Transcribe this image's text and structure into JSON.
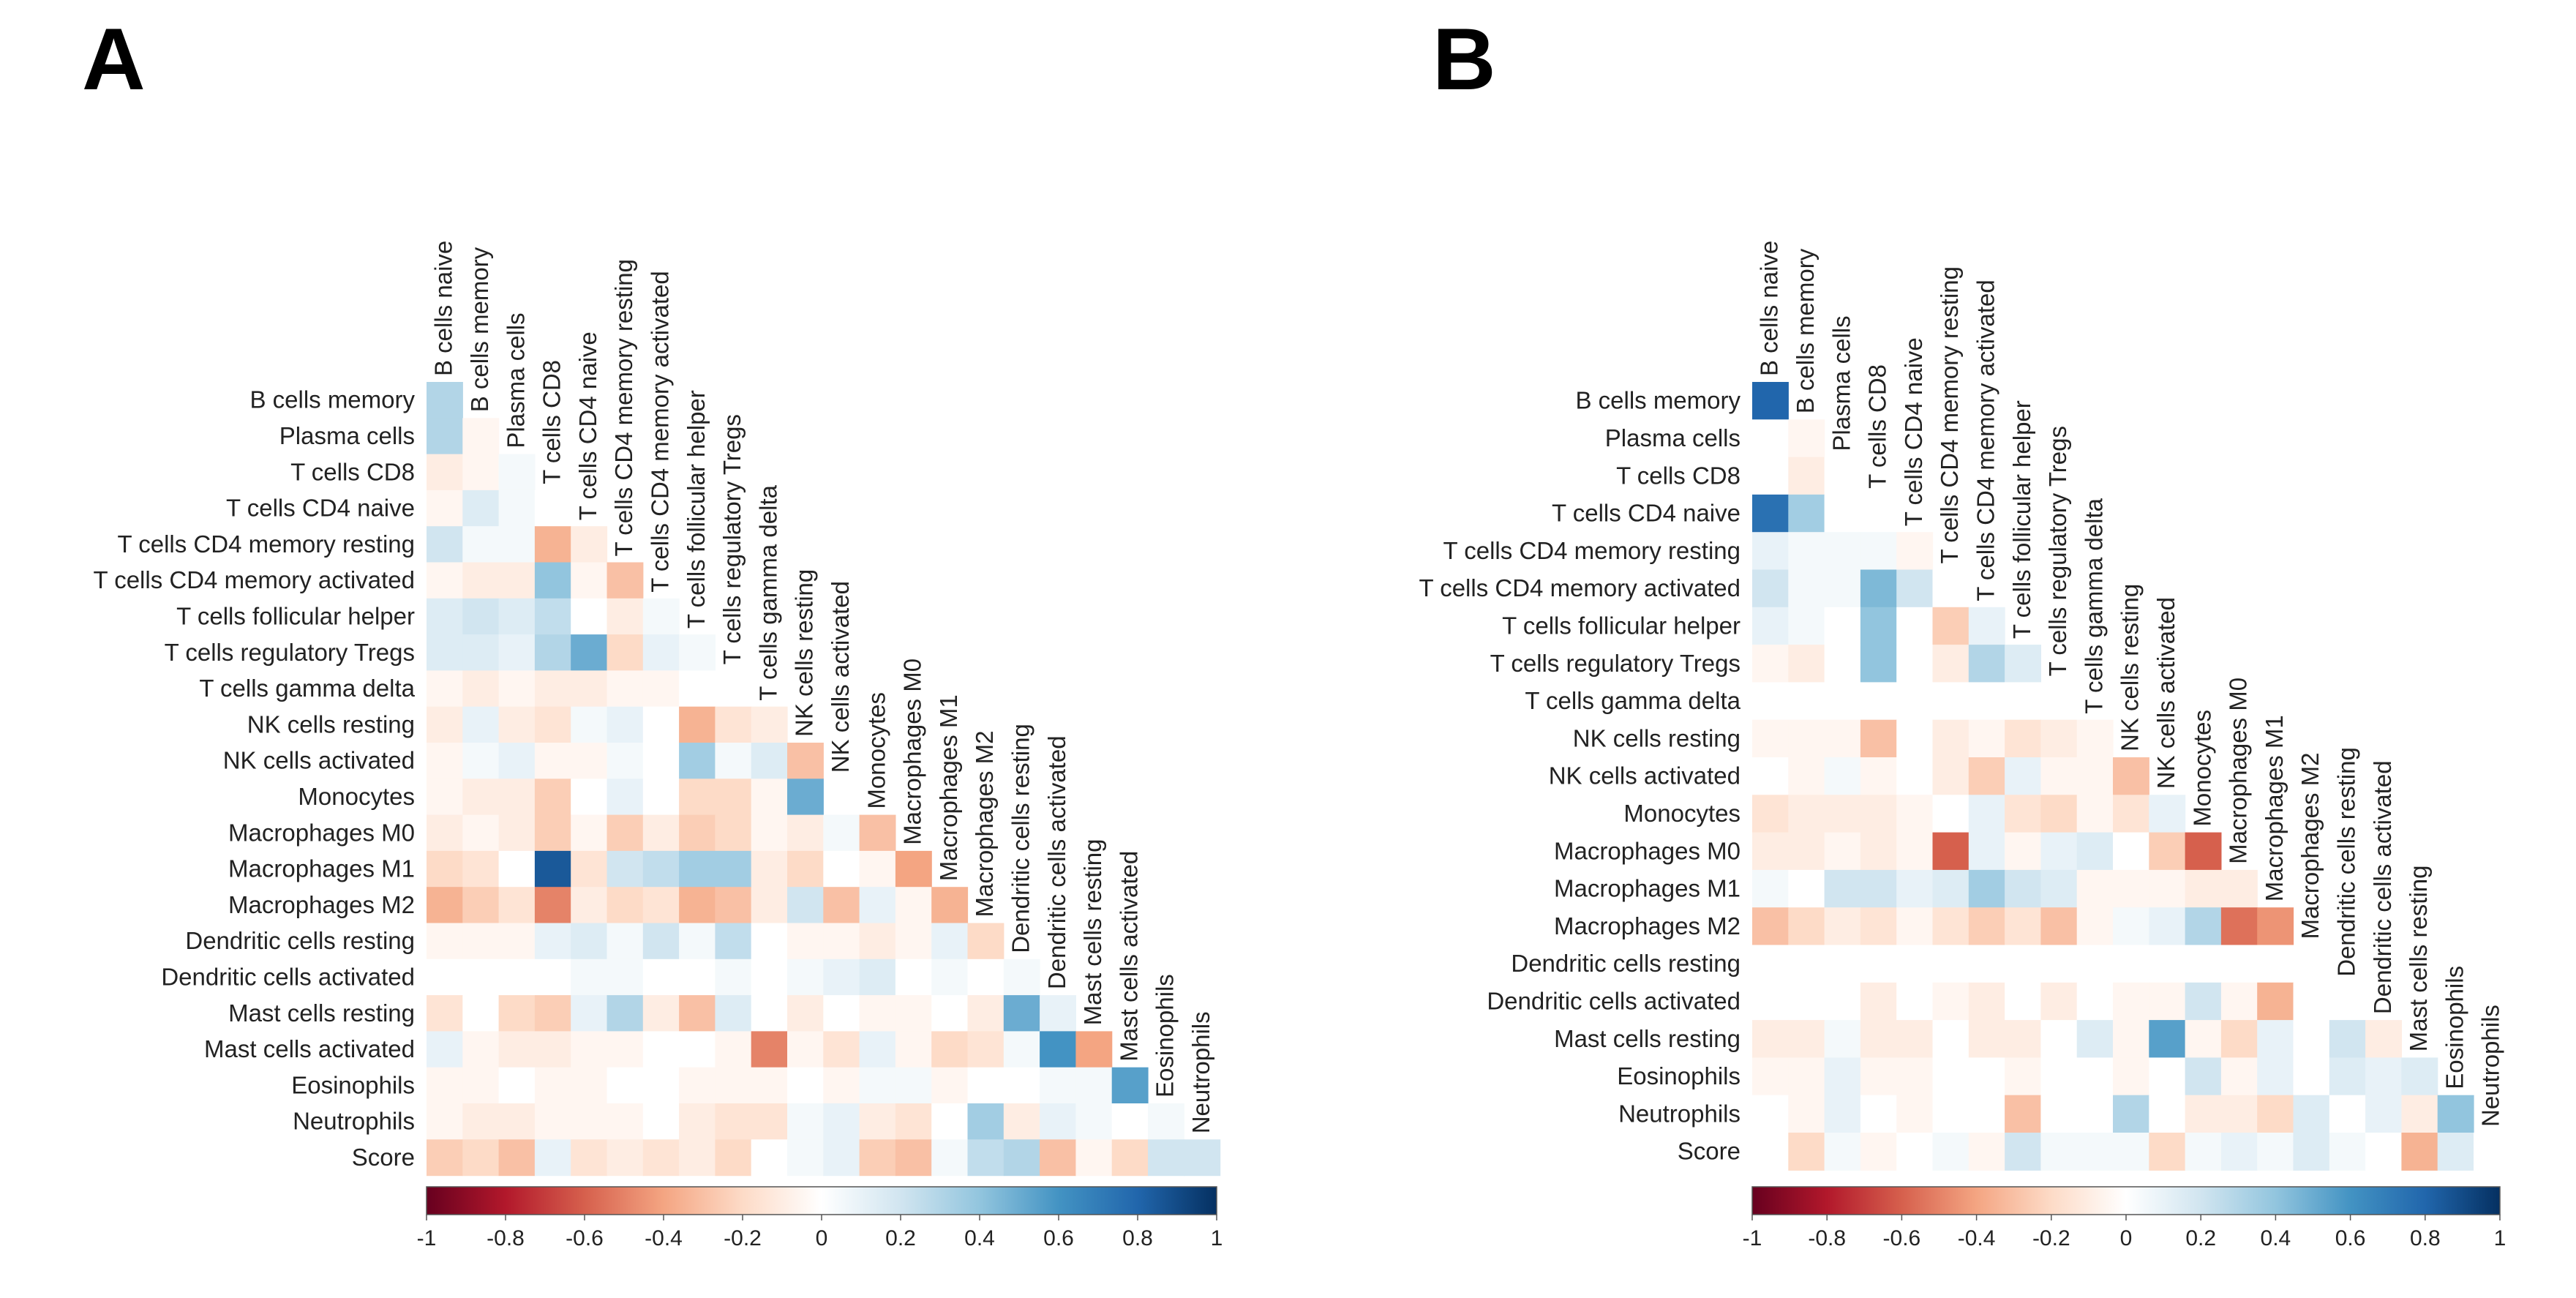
{
  "chart_data": [
    {
      "type": "heatmap",
      "panel": "A",
      "layout": "lower-triangle correlation matrix",
      "row_labels": [
        "B cells memory",
        "Plasma cells",
        "T cells CD8",
        "T cells CD4 naive",
        "T cells CD4 memory resting",
        "T cells CD4 memory activated",
        "T cells follicular helper",
        "T cells regulatory  Tregs",
        "T cells gamma delta",
        "NK cells resting",
        "NK cells activated",
        "Monocytes",
        "Macrophages M0",
        "Macrophages M1",
        "Macrophages M2",
        "Dendritic cells resting",
        "Dendritic cells activated",
        "Mast cells resting",
        "Mast cells activated",
        "Eosinophils",
        "Neutrophils",
        "Score"
      ],
      "col_labels": [
        "B cells naive",
        "B cells memory",
        "Plasma cells",
        "T cells CD8",
        "T cells CD4 naive",
        "T cells CD4 memory resting",
        "T cells CD4 memory activated",
        "T cells follicular helper",
        "T cells regulatory  Tregs",
        "T cells gamma delta",
        "NK cells resting",
        "NK cells activated",
        "Monocytes",
        "Macrophages M0",
        "Macrophages M1",
        "Macrophages M2",
        "Dendritic cells resting",
        "Dendritic cells activated",
        "Mast cells resting",
        "Mast cells activated",
        "Eosinophils",
        "Neutrophils"
      ],
      "values": [
        [
          0.3
        ],
        [
          0.3,
          -0.05
        ],
        [
          -0.1,
          -0.05,
          0.05
        ],
        [
          -0.05,
          0.15,
          0.05,
          0
        ],
        [
          0.2,
          0.05,
          0.05,
          -0.35,
          -0.1
        ],
        [
          -0.05,
          -0.1,
          -0.1,
          0.4,
          -0.05,
          -0.3
        ],
        [
          0.15,
          0.2,
          0.15,
          0.25,
          0,
          -0.1,
          0.05
        ],
        [
          0.15,
          0.15,
          0.1,
          0.3,
          0.5,
          -0.2,
          0.1,
          0.05
        ],
        [
          -0.05,
          -0.1,
          -0.05,
          -0.1,
          -0.1,
          -0.05,
          -0.05,
          0
        ],
        [
          -0.1,
          0.1,
          -0.1,
          -0.15,
          0.05,
          0.1,
          0,
          -0.35,
          -0.15,
          -0.1
        ],
        [
          -0.05,
          0.05,
          0.1,
          -0.05,
          -0.05,
          0.05,
          0,
          0.35,
          0.05,
          0.15,
          -0.3
        ],
        [
          -0.05,
          -0.1,
          -0.1,
          -0.25,
          0,
          0.1,
          0,
          -0.2,
          -0.2,
          -0.05,
          0.5
        ],
        [
          -0.1,
          -0.05,
          -0.1,
          -0.25,
          -0.05,
          -0.25,
          -0.1,
          -0.25,
          -0.2,
          -0.05,
          -0.1,
          0.05,
          -0.3
        ],
        [
          -0.2,
          -0.15,
          0,
          0.85,
          -0.15,
          0.2,
          0.25,
          0.35,
          0.35,
          -0.1,
          -0.2,
          0,
          -0.05,
          -0.4
        ],
        [
          -0.35,
          -0.25,
          -0.15,
          -0.5,
          -0.1,
          -0.2,
          -0.15,
          -0.35,
          -0.3,
          -0.1,
          0.2,
          -0.3,
          0.1,
          -0.05,
          -0.35
        ],
        [
          -0.05,
          -0.05,
          -0.05,
          0.1,
          0.15,
          0.05,
          0.2,
          0.05,
          0.25,
          0,
          -0.05,
          -0.05,
          -0.1,
          -0.05,
          0.1,
          -0.2
        ],
        [
          0,
          0,
          0,
          0,
          0.05,
          0.05,
          0,
          0,
          0.05,
          0,
          0.05,
          0.1,
          0.15,
          0,
          0.05,
          0,
          0.05
        ],
        [
          -0.15,
          0,
          -0.2,
          -0.25,
          0.1,
          0.3,
          -0.1,
          -0.3,
          0.15,
          0,
          -0.1,
          0,
          -0.05,
          -0.05,
          0,
          -0.1,
          0.5,
          0.1
        ],
        [
          0.1,
          -0.05,
          -0.1,
          -0.1,
          -0.05,
          -0.05,
          0,
          0,
          -0.05,
          -0.5,
          -0.05,
          -0.15,
          0.1,
          -0.05,
          -0.2,
          -0.15,
          0.05,
          0.6,
          -0.4
        ],
        [
          -0.05,
          -0.05,
          0,
          -0.05,
          -0.05,
          0,
          0,
          -0.05,
          -0.05,
          -0.05,
          0,
          -0.05,
          0.05,
          0.05,
          -0.05,
          0,
          0,
          0.05,
          0.05,
          0.55
        ],
        [
          -0.05,
          -0.1,
          -0.1,
          -0.05,
          -0.05,
          -0.05,
          0,
          -0.1,
          -0.15,
          -0.15,
          0.05,
          0.1,
          -0.1,
          -0.15,
          0,
          0.35,
          -0.1,
          0.1,
          0.05,
          0,
          0.05
        ],
        [
          -0.25,
          -0.2,
          -0.3,
          0.1,
          -0.15,
          -0.1,
          -0.15,
          -0.1,
          -0.2,
          0,
          0.05,
          0.1,
          -0.25,
          -0.3,
          0.05,
          0.25,
          0.3,
          -0.3,
          -0.05,
          -0.2,
          0.2,
          0.2
        ]
      ],
      "colorbar": {
        "ticks": [
          -1,
          -0.8,
          -0.6,
          -0.4,
          -0.2,
          0,
          0.2,
          0.4,
          0.6,
          0.8,
          1
        ],
        "tick_labels": [
          "-1",
          "-0.8",
          "-0.6",
          "-0.4",
          "-0.2",
          "0",
          "0.2",
          "0.4",
          "0.6",
          "0.8",
          "1"
        ]
      }
    },
    {
      "type": "heatmap",
      "panel": "B",
      "layout": "lower-triangle correlation matrix",
      "row_labels": [
        "B cells memory",
        "Plasma cells",
        "T cells CD8",
        "T cells CD4 naive",
        "T cells CD4 memory resting",
        "T cells CD4 memory activated",
        "T cells follicular helper",
        "T cells regulatory  Tregs",
        "T cells gamma delta",
        "NK cells resting",
        "NK cells activated",
        "Monocytes",
        "Macrophages M0",
        "Macrophages M1",
        "Macrophages M2",
        "Dendritic cells resting",
        "Dendritic cells activated",
        "Mast cells resting",
        "Eosinophils",
        "Neutrophils",
        "Score"
      ],
      "col_labels": [
        "B cells naive",
        "B cells memory",
        "Plasma cells",
        "T cells CD8",
        "T cells CD4 naive",
        "T cells CD4 memory resting",
        "T cells CD4 memory activated",
        "T cells follicular helper",
        "T cells regulatory  Tregs",
        "T cells gamma delta",
        "NK cells resting",
        "NK cells activated",
        "Monocytes",
        "Macrophages M0",
        "Macrophages M1",
        "Macrophages M2",
        "Dendritic cells resting",
        "Dendritic cells activated",
        "Mast cells resting",
        "Eosinophils",
        "Neutrophils"
      ],
      "values": [
        [
          0.8
        ],
        [
          0,
          -0.05
        ],
        [
          0,
          -0.1,
          0
        ],
        [
          0.75,
          0.35,
          0,
          0
        ],
        [
          0.1,
          0.05,
          0.05,
          0.05,
          -0.05
        ],
        [
          0.2,
          0.05,
          0.05,
          0.45,
          0.2,
          0
        ],
        [
          0.1,
          0.05,
          0,
          0.4,
          0,
          -0.25,
          0.1
        ],
        [
          -0.05,
          -0.1,
          0,
          0.4,
          0,
          -0.1,
          0.3,
          0.15
        ],
        [
          0,
          0,
          0,
          0,
          0,
          0,
          0,
          0,
          0
        ],
        [
          -0.05,
          -0.05,
          -0.05,
          -0.3,
          0,
          -0.1,
          -0.05,
          -0.15,
          -0.1,
          -0.05
        ],
        [
          0,
          -0.05,
          0.05,
          -0.05,
          0,
          -0.1,
          -0.25,
          0.1,
          -0.05,
          -0.05,
          -0.3
        ],
        [
          -0.15,
          -0.1,
          -0.1,
          -0.1,
          -0.05,
          0,
          0.1,
          -0.15,
          -0.2,
          -0.05,
          -0.15,
          0.1
        ],
        [
          -0.1,
          -0.1,
          -0.05,
          -0.1,
          -0.05,
          -0.6,
          0.1,
          -0.05,
          0.1,
          0.15,
          0,
          -0.25,
          -0.6
        ],
        [
          0.05,
          0,
          0.2,
          0.2,
          0.1,
          0.15,
          0.35,
          0.2,
          0.15,
          -0.05,
          -0.05,
          -0.05,
          -0.1,
          -0.1
        ],
        [
          -0.3,
          -0.2,
          -0.1,
          -0.15,
          -0.05,
          -0.15,
          -0.25,
          -0.15,
          -0.3,
          -0.05,
          0.05,
          0.1,
          0.3,
          -0.55,
          -0.45
        ],
        [
          0,
          0,
          0,
          0,
          0,
          0,
          0,
          0,
          0,
          0,
          0,
          0,
          0,
          0,
          0,
          0
        ],
        [
          0,
          0,
          0,
          -0.1,
          0,
          -0.05,
          -0.1,
          0,
          -0.1,
          0,
          -0.05,
          -0.05,
          0.2,
          -0.05,
          -0.35,
          0,
          0
        ],
        [
          -0.1,
          -0.1,
          0.05,
          -0.1,
          -0.1,
          0,
          -0.1,
          -0.1,
          0,
          0.15,
          -0.05,
          0.55,
          -0.05,
          -0.2,
          0.1,
          0,
          0.2,
          -0.1
        ],
        [
          -0.05,
          -0.05,
          0.1,
          -0.05,
          -0.05,
          0,
          0,
          -0.05,
          0,
          0,
          -0.05,
          0,
          0.2,
          -0.05,
          0.1,
          0,
          0.15,
          0.1,
          0.15
        ],
        [
          0,
          -0.05,
          0.1,
          0,
          -0.05,
          0,
          0,
          -0.3,
          0,
          0,
          0.3,
          0,
          -0.1,
          -0.1,
          -0.2,
          0.15,
          0,
          0.1,
          -0.1,
          0.4
        ],
        [
          0,
          -0.2,
          0.05,
          -0.05,
          0,
          0.05,
          -0.05,
          0.2,
          0.05,
          0.05,
          0.05,
          -0.2,
          0.05,
          0.1,
          0.05,
          0.15,
          0.05,
          0,
          -0.35,
          0.15,
          0
        ]
      ],
      "colorbar": {
        "ticks": [
          -1,
          -0.8,
          -0.6,
          -0.4,
          -0.2,
          0,
          0.2,
          0.4,
          0.6,
          0.8,
          1
        ],
        "tick_labels": [
          "-1",
          "-0.8",
          "-0.6",
          "-0.4",
          "-0.2",
          "0",
          "0.2",
          "0.4",
          "0.6",
          "0.8",
          "1"
        ]
      }
    }
  ]
}
